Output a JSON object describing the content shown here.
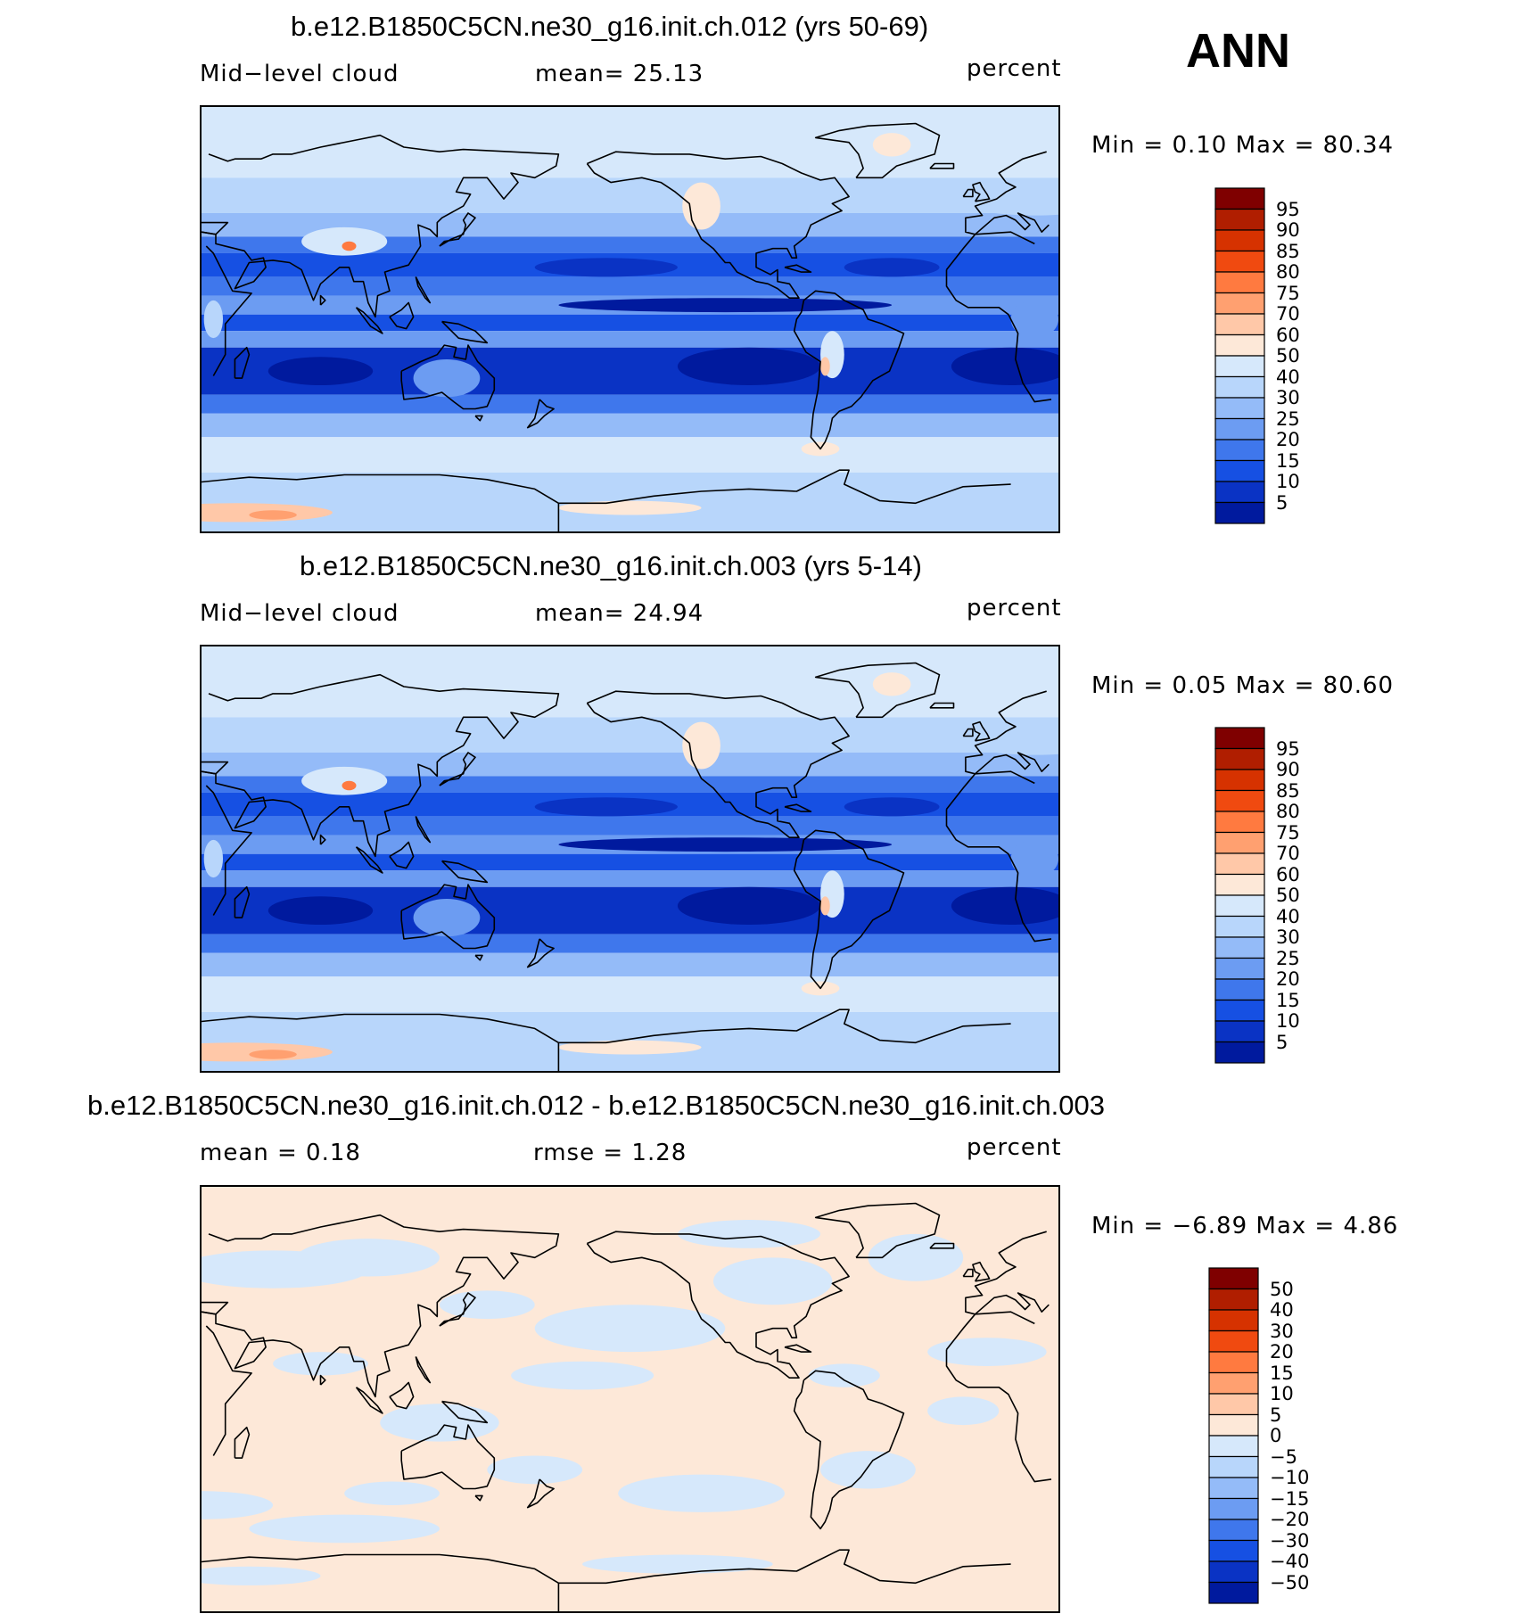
{
  "season": "ANN",
  "panels": [
    {
      "title": "b.e12.B1850C5CN.ne30_g16.init.ch.012 (yrs 50-69)",
      "left_label": "Mid−level cloud",
      "center_label": "mean=   25.13",
      "units": "percent",
      "minmax": "Min =    0.10 Max =   80.34",
      "kind": "abs",
      "colorbar": {
        "labels": [
          "95",
          "90",
          "85",
          "80",
          "75",
          "70",
          "60",
          "50",
          "40",
          "30",
          "25",
          "20",
          "15",
          "10",
          "5"
        ],
        "colors": [
          "#7f0000",
          "#b01e00",
          "#d63200",
          "#f04a10",
          "#ff7a40",
          "#ffa070",
          "#ffc8a8",
          "#fde8d8",
          "#d6e8fb",
          "#b8d6fb",
          "#94bbf8",
          "#6c9cf2",
          "#3f77ec",
          "#1650e3",
          "#0a33c4",
          "#001a9e"
        ]
      }
    },
    {
      "title": "b.e12.B1850C5CN.ne30_g16.init.ch.003 (yrs 5-14)",
      "left_label": "Mid−level cloud",
      "center_label": "mean=   24.94",
      "units": "percent",
      "minmax": "Min =    0.05 Max =   80.60",
      "kind": "abs",
      "colorbar": {
        "labels": [
          "95",
          "90",
          "85",
          "80",
          "75",
          "70",
          "60",
          "50",
          "40",
          "30",
          "25",
          "20",
          "15",
          "10",
          "5"
        ],
        "colors": [
          "#7f0000",
          "#b01e00",
          "#d63200",
          "#f04a10",
          "#ff7a40",
          "#ffa070",
          "#ffc8a8",
          "#fde8d8",
          "#d6e8fb",
          "#b8d6fb",
          "#94bbf8",
          "#6c9cf2",
          "#3f77ec",
          "#1650e3",
          "#0a33c4",
          "#001a9e"
        ]
      }
    },
    {
      "title": "b.e12.B1850C5CN.ne30_g16.init.ch.012 - b.e12.B1850C5CN.ne30_g16.init.ch.003",
      "left_label": "mean =    0.18",
      "center_label": "rmse =    1.28",
      "units": "percent",
      "minmax": "Min =  −6.89 Max =    4.86",
      "kind": "diff",
      "colorbar": {
        "labels": [
          "50",
          "40",
          "30",
          "20",
          "15",
          "10",
          "5",
          "0",
          "−5",
          "−10",
          "−15",
          "−20",
          "−30",
          "−40",
          "−50"
        ],
        "colors": [
          "#7f0000",
          "#b01e00",
          "#d63200",
          "#f04a10",
          "#ff7a40",
          "#ffa070",
          "#ffc8a8",
          "#fde8d8",
          "#d6e8fb",
          "#b8d6fb",
          "#94bbf8",
          "#6c9cf2",
          "#3f77ec",
          "#1650e3",
          "#0a33c4",
          "#001a9e"
        ]
      }
    }
  ]
}
